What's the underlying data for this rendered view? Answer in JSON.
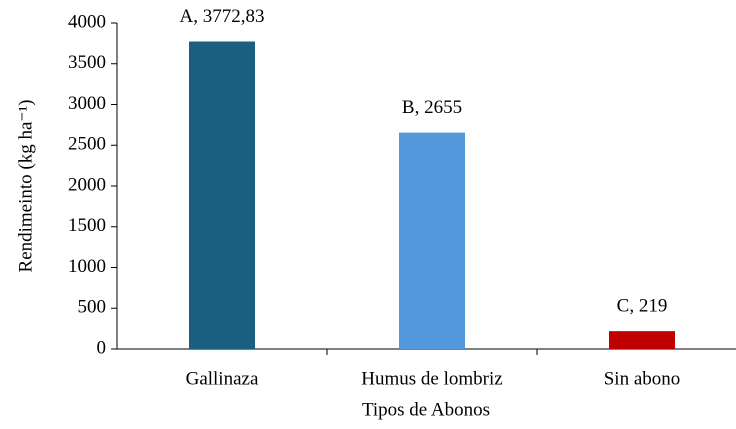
{
  "chart_data": {
    "type": "bar",
    "x_label": "Tipos de Abonos",
    "y_label": "Rendimeinto (kg ha⁻¹)",
    "categories": [
      "Gallinaza",
      "Humus de lombriz",
      "Sin abono"
    ],
    "values": [
      3772.83,
      2655,
      219
    ],
    "value_labels": [
      "A, 3772,83",
      "B, 2655",
      "C, 219"
    ],
    "colors": [
      "#1a5f80",
      "#5499db",
      "#c00000"
    ],
    "ylim": [
      0,
      4000
    ],
    "yticks": [
      0,
      500,
      1000,
      1500,
      2000,
      2500,
      3000,
      3500,
      4000
    ],
    "grid": false
  }
}
